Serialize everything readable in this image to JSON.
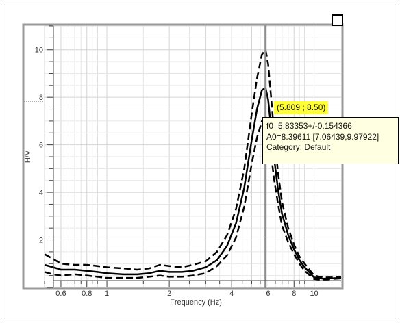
{
  "colors": {
    "background": "#ffffff",
    "plot_frame": "#999999",
    "grid_minor": "#e6e6e6",
    "grid_major": "#d4d4d4",
    "curve": "#000000",
    "cursor_line": "#8c8c8c",
    "tooltip_bg": "#ffffe1",
    "readout_bg": "#ffff33"
  },
  "tooltip": {
    "f0": "f0=5.83353+/-0.154366",
    "a0": "A0=8.39611 [7.06439,9.97922]",
    "category": "Category: Default"
  },
  "cursor_readout": "(5.809 ; 8.50)",
  "window_toggle_icon": "checkbox-square-icon",
  "chart_data": {
    "type": "line",
    "xscale": "log",
    "xlim": [
      0.5,
      13.5
    ],
    "ylim": [
      0,
      11
    ],
    "grid": true,
    "xlabel": "Frequency (Hz)",
    "ylabel": "H/V",
    "x_ticks": [
      {
        "value": 0.6,
        "label": "0.6"
      },
      {
        "value": 0.8,
        "label": "0.8"
      },
      {
        "value": 1,
        "label": "1"
      },
      {
        "value": 2,
        "label": "2"
      },
      {
        "value": 4,
        "label": "4"
      },
      {
        "value": 6,
        "label": "6"
      },
      {
        "value": 8,
        "label": "8"
      },
      {
        "value": 10,
        "label": "10"
      }
    ],
    "y_ticks": [
      {
        "value": 2,
        "label": "2"
      },
      {
        "value": 4,
        "label": "4"
      },
      {
        "value": 6,
        "label": "6"
      },
      {
        "value": 8,
        "label": "8"
      },
      {
        "value": 10,
        "label": "10"
      }
    ],
    "cursor_x": 5.83,
    "cursor_y": 8.5,
    "x": [
      0.5,
      0.55,
      0.6,
      0.7,
      0.8,
      0.9,
      1.0,
      1.2,
      1.4,
      1.6,
      1.8,
      2.0,
      2.3,
      2.6,
      3.0,
      3.4,
      3.8,
      4.2,
      4.6,
      5.0,
      5.3,
      5.6,
      5.83,
      6.0,
      6.2,
      6.4,
      6.7,
      7.0,
      7.5,
      8.0,
      8.5,
      9.0,
      10.0,
      11.0,
      12.0,
      13.5
    ],
    "series": [
      {
        "style": "dashed",
        "values": [
          1.4,
          1.2,
          1.0,
          0.95,
          0.95,
          0.9,
          0.85,
          0.8,
          0.75,
          0.8,
          0.95,
          0.9,
          0.85,
          0.95,
          1.1,
          1.5,
          2.2,
          3.3,
          5.0,
          7.3,
          8.8,
          9.8,
          10.0,
          9.4,
          8.0,
          6.6,
          4.8,
          3.6,
          2.5,
          1.8,
          1.3,
          1.0,
          0.5,
          0.42,
          0.42,
          0.45
        ]
      },
      {
        "style": "solid",
        "values": [
          0.95,
          0.85,
          0.75,
          0.75,
          0.7,
          0.65,
          0.6,
          0.55,
          0.55,
          0.6,
          0.7,
          0.65,
          0.65,
          0.7,
          0.85,
          1.15,
          1.75,
          2.7,
          4.2,
          6.2,
          7.5,
          8.3,
          8.4,
          7.9,
          6.7,
          5.5,
          4.1,
          3.1,
          2.2,
          1.6,
          1.15,
          0.85,
          0.42,
          0.37,
          0.38,
          0.4
        ]
      },
      {
        "style": "dashed",
        "values": [
          0.65,
          0.55,
          0.5,
          0.55,
          0.5,
          0.45,
          0.4,
          0.4,
          0.4,
          0.45,
          0.5,
          0.45,
          0.45,
          0.5,
          0.6,
          0.9,
          1.35,
          2.1,
          3.4,
          5.2,
          6.3,
          7.0,
          7.06,
          6.6,
          5.6,
          4.6,
          3.5,
          2.6,
          1.9,
          1.4,
          1.0,
          0.7,
          0.35,
          0.32,
          0.35,
          0.38
        ]
      }
    ]
  }
}
